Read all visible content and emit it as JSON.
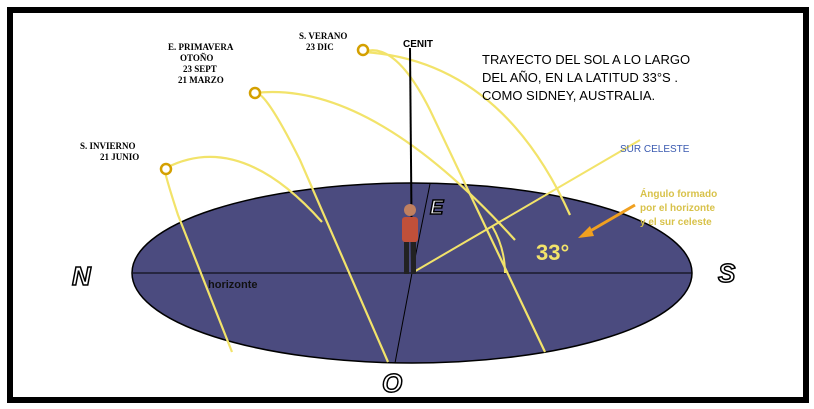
{
  "title_lines": [
    "TRAYECTO DEL SOL A LO LARGO",
    "DEL AÑO, EN LA LATITUD 33°S .",
    "COMO SIDNEY, AUSTRALIA."
  ],
  "zenith": "CENIT",
  "suns": [
    {
      "label_lines": [
        "S. VERANO",
        "23 DIC"
      ]
    },
    {
      "label_lines": [
        "E. PRIMAVERA",
        "OTOÑO",
        "23 SEPT",
        "21 MARZO"
      ]
    },
    {
      "label_lines": [
        "S. INVIERNO",
        "21 JUNIO"
      ]
    }
  ],
  "celestial_south": "SUR CELESTE",
  "angle_note_lines": [
    "Ángulo formado",
    "por el horizonte",
    "y el sur celeste"
  ],
  "angle": "33°",
  "horizon": "horizonte",
  "cardinals": {
    "north": "N",
    "south": "S",
    "west": "O",
    "east": "E"
  }
}
